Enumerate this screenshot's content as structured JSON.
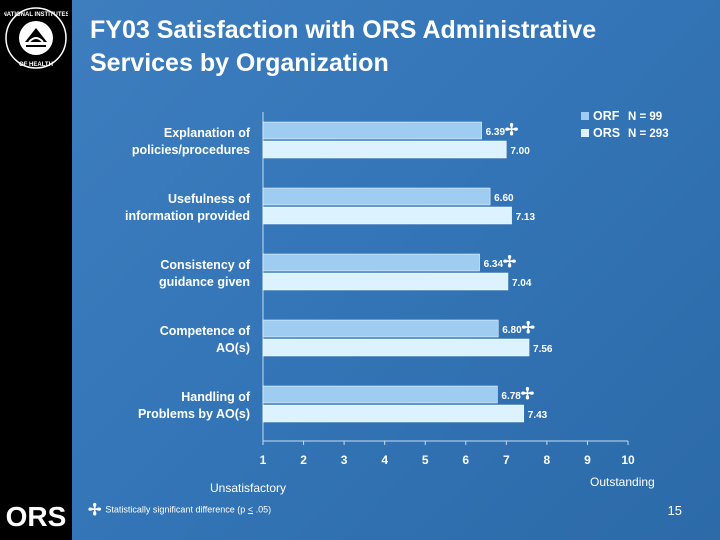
{
  "title": "FY03 Satisfaction with ORS Administrative Services by Organization",
  "seal_text": "NATIONAL INSTITUTES OF HEALTH",
  "logo_text": "ORS",
  "footnote": {
    "marker": "✢",
    "text_pre": "Statistically significant difference (p ",
    "symbol": "<",
    "text_post": " .05)"
  },
  "page_number": "15",
  "colors": {
    "orf": "#9fcdf2",
    "ors": "#ddf2ff",
    "accent_mark": "#ffffff"
  },
  "chart_data": {
    "type": "bar",
    "orientation": "horizontal",
    "categories": [
      [
        "Explanation of",
        "policies/procedures"
      ],
      [
        "Usefulness of",
        "information provided"
      ],
      [
        "Consistency of",
        "guidance given"
      ],
      [
        "Competence of",
        "AO(s)"
      ],
      [
        "Handling of",
        "Problems by AO(s)"
      ]
    ],
    "series": [
      {
        "name": "ORF",
        "n_label": "N = 99",
        "values": [
          6.39,
          6.6,
          6.34,
          6.8,
          6.78
        ]
      },
      {
        "name": "ORS",
        "n_label": "N =  293",
        "values": [
          7.0,
          7.13,
          7.04,
          7.56,
          7.43
        ]
      }
    ],
    "value_labels": [
      [
        "6.39",
        "7.00"
      ],
      [
        "6.60",
        "7.13"
      ],
      [
        "6.34",
        "7.04"
      ],
      [
        "6.80",
        "7.56"
      ],
      [
        "6.78",
        "7.43"
      ]
    ],
    "significant": [
      true,
      false,
      true,
      true,
      true
    ],
    "xlim": [
      1,
      10
    ],
    "xticks": [
      1,
      2,
      3,
      4,
      5,
      6,
      7,
      8,
      9,
      10
    ],
    "xlabel_left": "Unsatisfactory",
    "xlabel_right": "Outstanding",
    "legend_position": "top-right"
  }
}
